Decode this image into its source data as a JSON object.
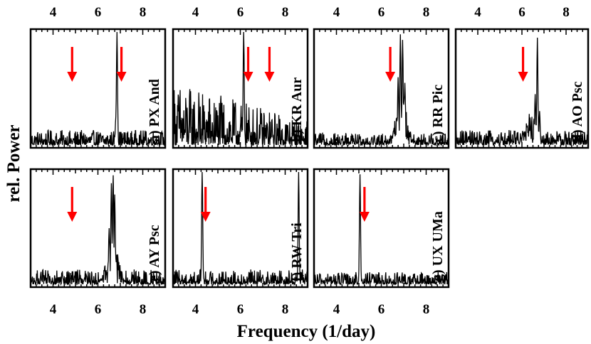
{
  "chart_data": {
    "type": "line",
    "title": "",
    "xlabel": "Frequency (1/day)",
    "ylabel": "rel. Power",
    "xlim": [
      3,
      9
    ],
    "x_ticks": [
      4,
      6,
      8
    ],
    "arrow_color": "#ff0000",
    "line_color": "#000000",
    "panels": [
      {
        "label": "a) PX And",
        "peaks": [
          {
            "f": 6.85,
            "h": 1.0
          },
          {
            "f": 6.8,
            "h": 0.25
          }
        ],
        "arrows": [
          4.85,
          7.05
        ],
        "noise_level": 0.06
      },
      {
        "label": "b) KR Aur",
        "peaks": [
          {
            "f": 6.15,
            "h": 1.0
          }
        ],
        "arrows": [
          6.35,
          7.3
        ],
        "noise_level": 0.16
      },
      {
        "label": "c) RR Pic",
        "peaks": [
          {
            "f": 6.85,
            "h": 0.98
          },
          {
            "f": 6.95,
            "h": 0.93
          },
          {
            "f": 6.75,
            "h": 0.6
          },
          {
            "f": 7.05,
            "h": 0.55
          }
        ],
        "arrows": [
          6.4
        ],
        "noise_level": 0.05
      },
      {
        "label": "d) AO Psc",
        "peaks": [
          {
            "f": 6.7,
            "h": 0.95
          },
          {
            "f": 6.6,
            "h": 0.45
          },
          {
            "f": 6.8,
            "h": 0.3
          }
        ],
        "arrows": [
          6.05
        ],
        "noise_level": 0.06
      },
      {
        "label": "e) AY Psc",
        "peaks": [
          {
            "f": 6.68,
            "h": 0.98
          },
          {
            "f": 6.6,
            "h": 0.9
          },
          {
            "f": 6.75,
            "h": 0.8
          },
          {
            "f": 6.5,
            "h": 0.5
          }
        ],
        "arrows": [
          4.85
        ],
        "noise_level": 0.06
      },
      {
        "label": "f) RW Tri",
        "peaks": [
          {
            "f": 4.3,
            "h": 1.0
          },
          {
            "f": 8.6,
            "h": 1.0
          }
        ],
        "arrows": [
          4.45
        ],
        "noise_level": 0.06
      },
      {
        "label": "g) UX UMa",
        "peaks": [
          {
            "f": 5.05,
            "h": 0.98
          }
        ],
        "arrows": [
          5.25
        ],
        "noise_level": 0.05
      }
    ]
  }
}
